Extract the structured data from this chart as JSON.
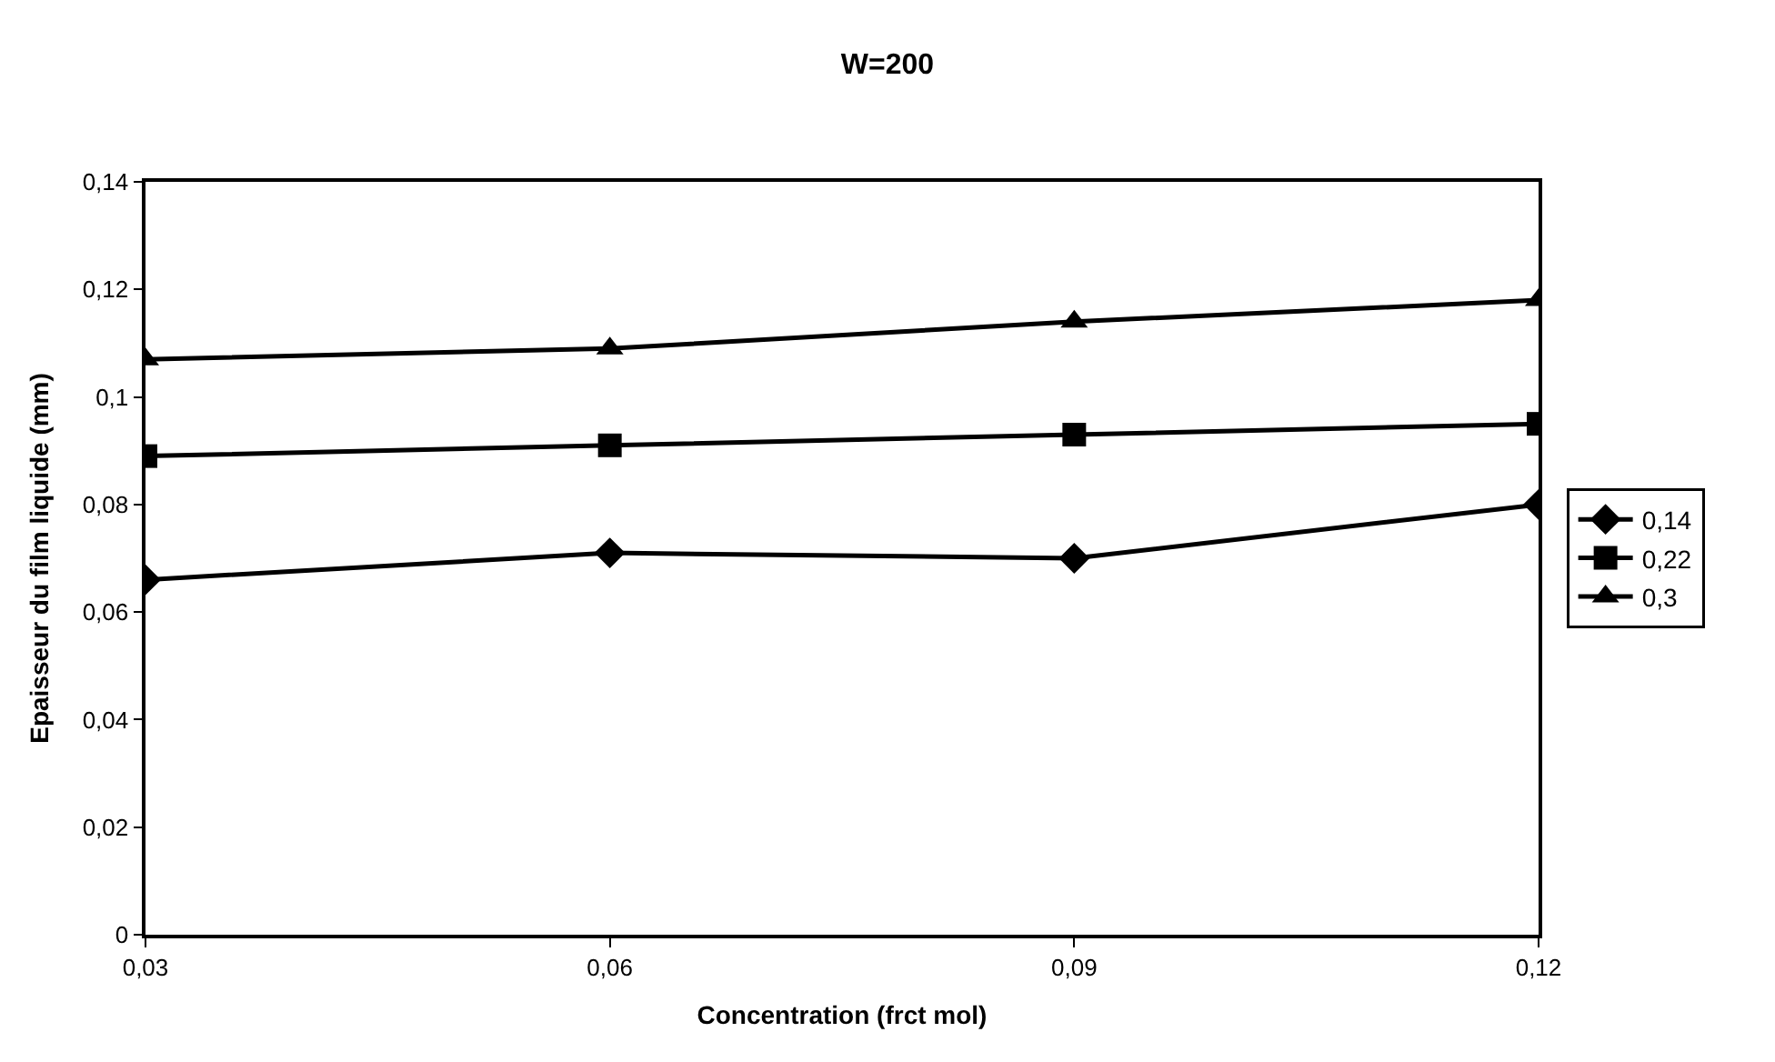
{
  "chart_data": {
    "type": "line",
    "title": "W=200",
    "xlabel": "Concentration (frct mol)",
    "ylabel": "Epaisseur du film liquide (mm)",
    "x": [
      0.03,
      0.06,
      0.09,
      0.12
    ],
    "series": [
      {
        "name": "0,14",
        "color": "#000000",
        "marker": "diamond",
        "values": [
          0.066,
          0.071,
          0.07,
          0.08
        ]
      },
      {
        "name": "0,22",
        "color": "#000000",
        "marker": "square",
        "values": [
          0.089,
          0.091,
          0.093,
          0.095
        ]
      },
      {
        "name": "0,3",
        "color": "#000000",
        "marker": "triangle",
        "values": [
          0.107,
          0.109,
          0.114,
          0.118
        ]
      }
    ],
    "xlim": [
      0.03,
      0.12
    ],
    "xticks": [
      {
        "value": 0.03,
        "label": "0,03"
      },
      {
        "value": 0.06,
        "label": "0,06"
      },
      {
        "value": 0.09,
        "label": "0,09"
      },
      {
        "value": 0.12,
        "label": "0,12"
      }
    ],
    "ylim": [
      0,
      0.14
    ],
    "yticks": [
      0,
      {
        "value": 0.02,
        "label": "0,02"
      },
      {
        "value": 0.04,
        "label": "0,04"
      },
      {
        "value": 0.06,
        "label": "0,06"
      },
      {
        "value": 0.08,
        "label": "0,08"
      },
      {
        "value": 0.1,
        "label": "0,1"
      },
      {
        "value": 0.12,
        "label": "0,12"
      },
      {
        "value": 0.14,
        "label": "0,14"
      }
    ],
    "legend": "right",
    "line_style": "solid"
  }
}
